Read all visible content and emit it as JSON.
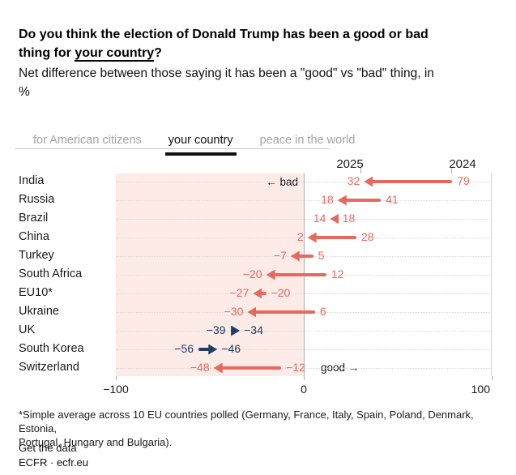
{
  "header": {
    "title_line1": "Do you think the election of Donald Trump has been a good or bad",
    "title_line2_prefix": "thing for ",
    "title_line2_underline": "your country",
    "title_line2_suffix": "?",
    "subtitle_line1": "Net difference between those saying it has been a \"good\" vs \"bad\" thing, in",
    "subtitle_line2": "%"
  },
  "tabs": [
    {
      "label": "for American citizens",
      "active": false
    },
    {
      "label": "your country",
      "active": true
    },
    {
      "label": "peace in the world",
      "active": false
    }
  ],
  "chart_data": {
    "type": "arrow",
    "columns": [
      "2025",
      "2024"
    ],
    "x_axis": {
      "min": -100,
      "max": 100,
      "ticks": [
        -100,
        0,
        100
      ]
    },
    "annotations": {
      "bad": "← bad",
      "good": "good →"
    },
    "colors": {
      "decrease_arrow": "#e7695e",
      "increase_arrow": "#1e3d68",
      "negative_region_fill": "#fcebe7"
    },
    "rows": [
      {
        "country": "India",
        "v2024": 79,
        "v2025": 32
      },
      {
        "country": "Russia",
        "v2024": 41,
        "v2025": 18
      },
      {
        "country": "Brazil",
        "v2024": 18,
        "v2025": 14
      },
      {
        "country": "China",
        "v2024": 28,
        "v2025": 2
      },
      {
        "country": "Turkey",
        "v2024": 5,
        "v2025": -7
      },
      {
        "country": "South Africa",
        "v2024": 12,
        "v2025": -20
      },
      {
        "country": "EU10*",
        "v2024": -20,
        "v2025": -27
      },
      {
        "country": "Ukraine",
        "v2024": 6,
        "v2025": -30
      },
      {
        "country": "UK",
        "v2024": -39,
        "v2025": -34
      },
      {
        "country": "South Korea",
        "v2024": -56,
        "v2025": -46
      },
      {
        "country": "Switzerland",
        "v2024": -12,
        "v2025": -48
      }
    ]
  },
  "footer": {
    "footnote_line1": "*Simple average across 10 EU countries polled (Germany, France, Italy, Spain, Poland, Denmark, Estonia,",
    "footnote_line2": "Portugal, Hungary and Bulgaria).",
    "get_data": "Get the data",
    "source": "ECFR · ecfr.eu"
  }
}
